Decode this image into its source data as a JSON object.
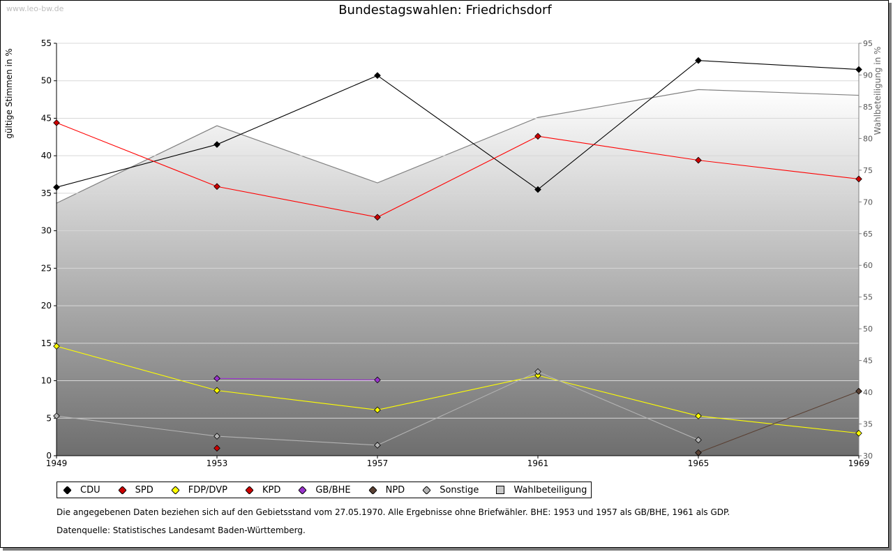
{
  "watermark": "www.leo-bw.de",
  "notes": {
    "area": "Die angegebenen Daten beziehen sich auf den Gebietsstand vom 27.05.1970. Alle Ergebnisse ohne Briefwähler. BHE: 1953 und 1957 als GB/BHE, 1961 als GDP.",
    "source": "Datenquelle: Statistisches Landesamt Baden-Württemberg."
  },
  "chart_data": {
    "type": "line",
    "title": "Bundestagswahlen: Friedrichsdorf",
    "ylabel": "gültige Stimmen in %",
    "y2label": "Wahlbeteiligung in %",
    "x": [
      1949,
      1953,
      1957,
      1961,
      1965,
      1969
    ],
    "ylim": [
      0,
      55
    ],
    "y2lim": [
      30,
      95
    ],
    "yticks": [
      0,
      5,
      10,
      15,
      20,
      25,
      30,
      35,
      40,
      45,
      50,
      55
    ],
    "y2ticks": [
      30,
      35,
      40,
      45,
      50,
      55,
      60,
      65,
      70,
      75,
      80,
      85,
      90,
      95
    ],
    "grid": true,
    "legend_position": "bottom",
    "series": [
      {
        "name": "CDU",
        "color": "#000000",
        "values": [
          35.8,
          41.5,
          50.7,
          35.5,
          52.7,
          51.5
        ]
      },
      {
        "name": "SPD",
        "color": "#ff0000",
        "marker_fill": "#cc0000",
        "values": [
          44.4,
          35.9,
          31.8,
          42.6,
          39.4,
          36.9
        ]
      },
      {
        "name": "FDP/DVP",
        "color": "#ffff00",
        "values": [
          14.6,
          8.7,
          6.1,
          10.7,
          5.3,
          3.0
        ]
      },
      {
        "name": "KPD",
        "color": "#cc0000",
        "values": [
          null,
          1.0,
          null,
          null,
          null,
          null
        ]
      },
      {
        "name": "GB/BHE",
        "color": "#9933cc",
        "values": [
          null,
          10.3,
          10.1,
          null,
          null,
          null
        ]
      },
      {
        "name": "NPD",
        "color": "#5a4033",
        "values": [
          null,
          null,
          null,
          null,
          0.4,
          8.6
        ]
      },
      {
        "name": "Sonstige",
        "color": "#b3b3b3",
        "values": [
          5.3,
          2.6,
          1.4,
          11.2,
          2.1,
          null
        ]
      },
      {
        "name": "Wahlbeteiligung",
        "axis": "right",
        "type": "area",
        "color": "#808080",
        "values": [
          69.8,
          82.0,
          73.0,
          83.3,
          87.7,
          86.8
        ]
      }
    ]
  }
}
